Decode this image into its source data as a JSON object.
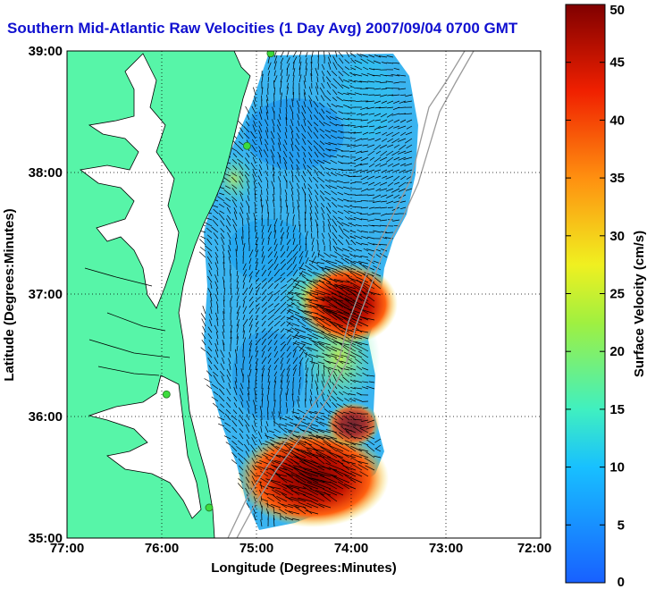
{
  "title": "Southern Mid-Atlantic Raw Velocities (1 Day Avg) 2007/09/04 0700 GMT",
  "colors": {
    "land": "#57f5a8",
    "coast": "#000000",
    "bathymetry": "#9a9a9a",
    "station": "#3cdc3c",
    "vectors": "#000000",
    "title": "#1010d0"
  },
  "chart_data": {
    "type": "heatmap",
    "xlabel": "Longitude (Degrees:Minutes)",
    "ylabel": "Latitude (Degrees:Minutes)",
    "x_ticks": [
      "77:00",
      "76:00",
      "75:00",
      "74:00",
      "73:00",
      "72:00"
    ],
    "y_ticks": [
      "39:00",
      "38:00",
      "37:00",
      "36:00",
      "35:00"
    ],
    "xlim": [
      -77,
      -72
    ],
    "ylim": [
      35,
      39
    ],
    "grid": true,
    "colorbar": {
      "label": "Surface Velocity (cm/s)",
      "ticks": [
        "0",
        "5",
        "10",
        "15",
        "20",
        "25",
        "30",
        "35",
        "40",
        "45",
        "50"
      ],
      "range": [
        0,
        50
      ]
    },
    "stations": [
      {
        "lon": -74.85,
        "lat": 38.98
      },
      {
        "lon": -75.1,
        "lat": 38.22
      },
      {
        "lon": -75.95,
        "lat": 36.18
      },
      {
        "lon": -75.5,
        "lat": 35.25
      }
    ],
    "high_speed_regions": [
      {
        "lon": -74.0,
        "lat": 36.85,
        "speed": 48
      },
      {
        "lon": -74.3,
        "lat": 35.55,
        "speed": 50
      }
    ]
  }
}
